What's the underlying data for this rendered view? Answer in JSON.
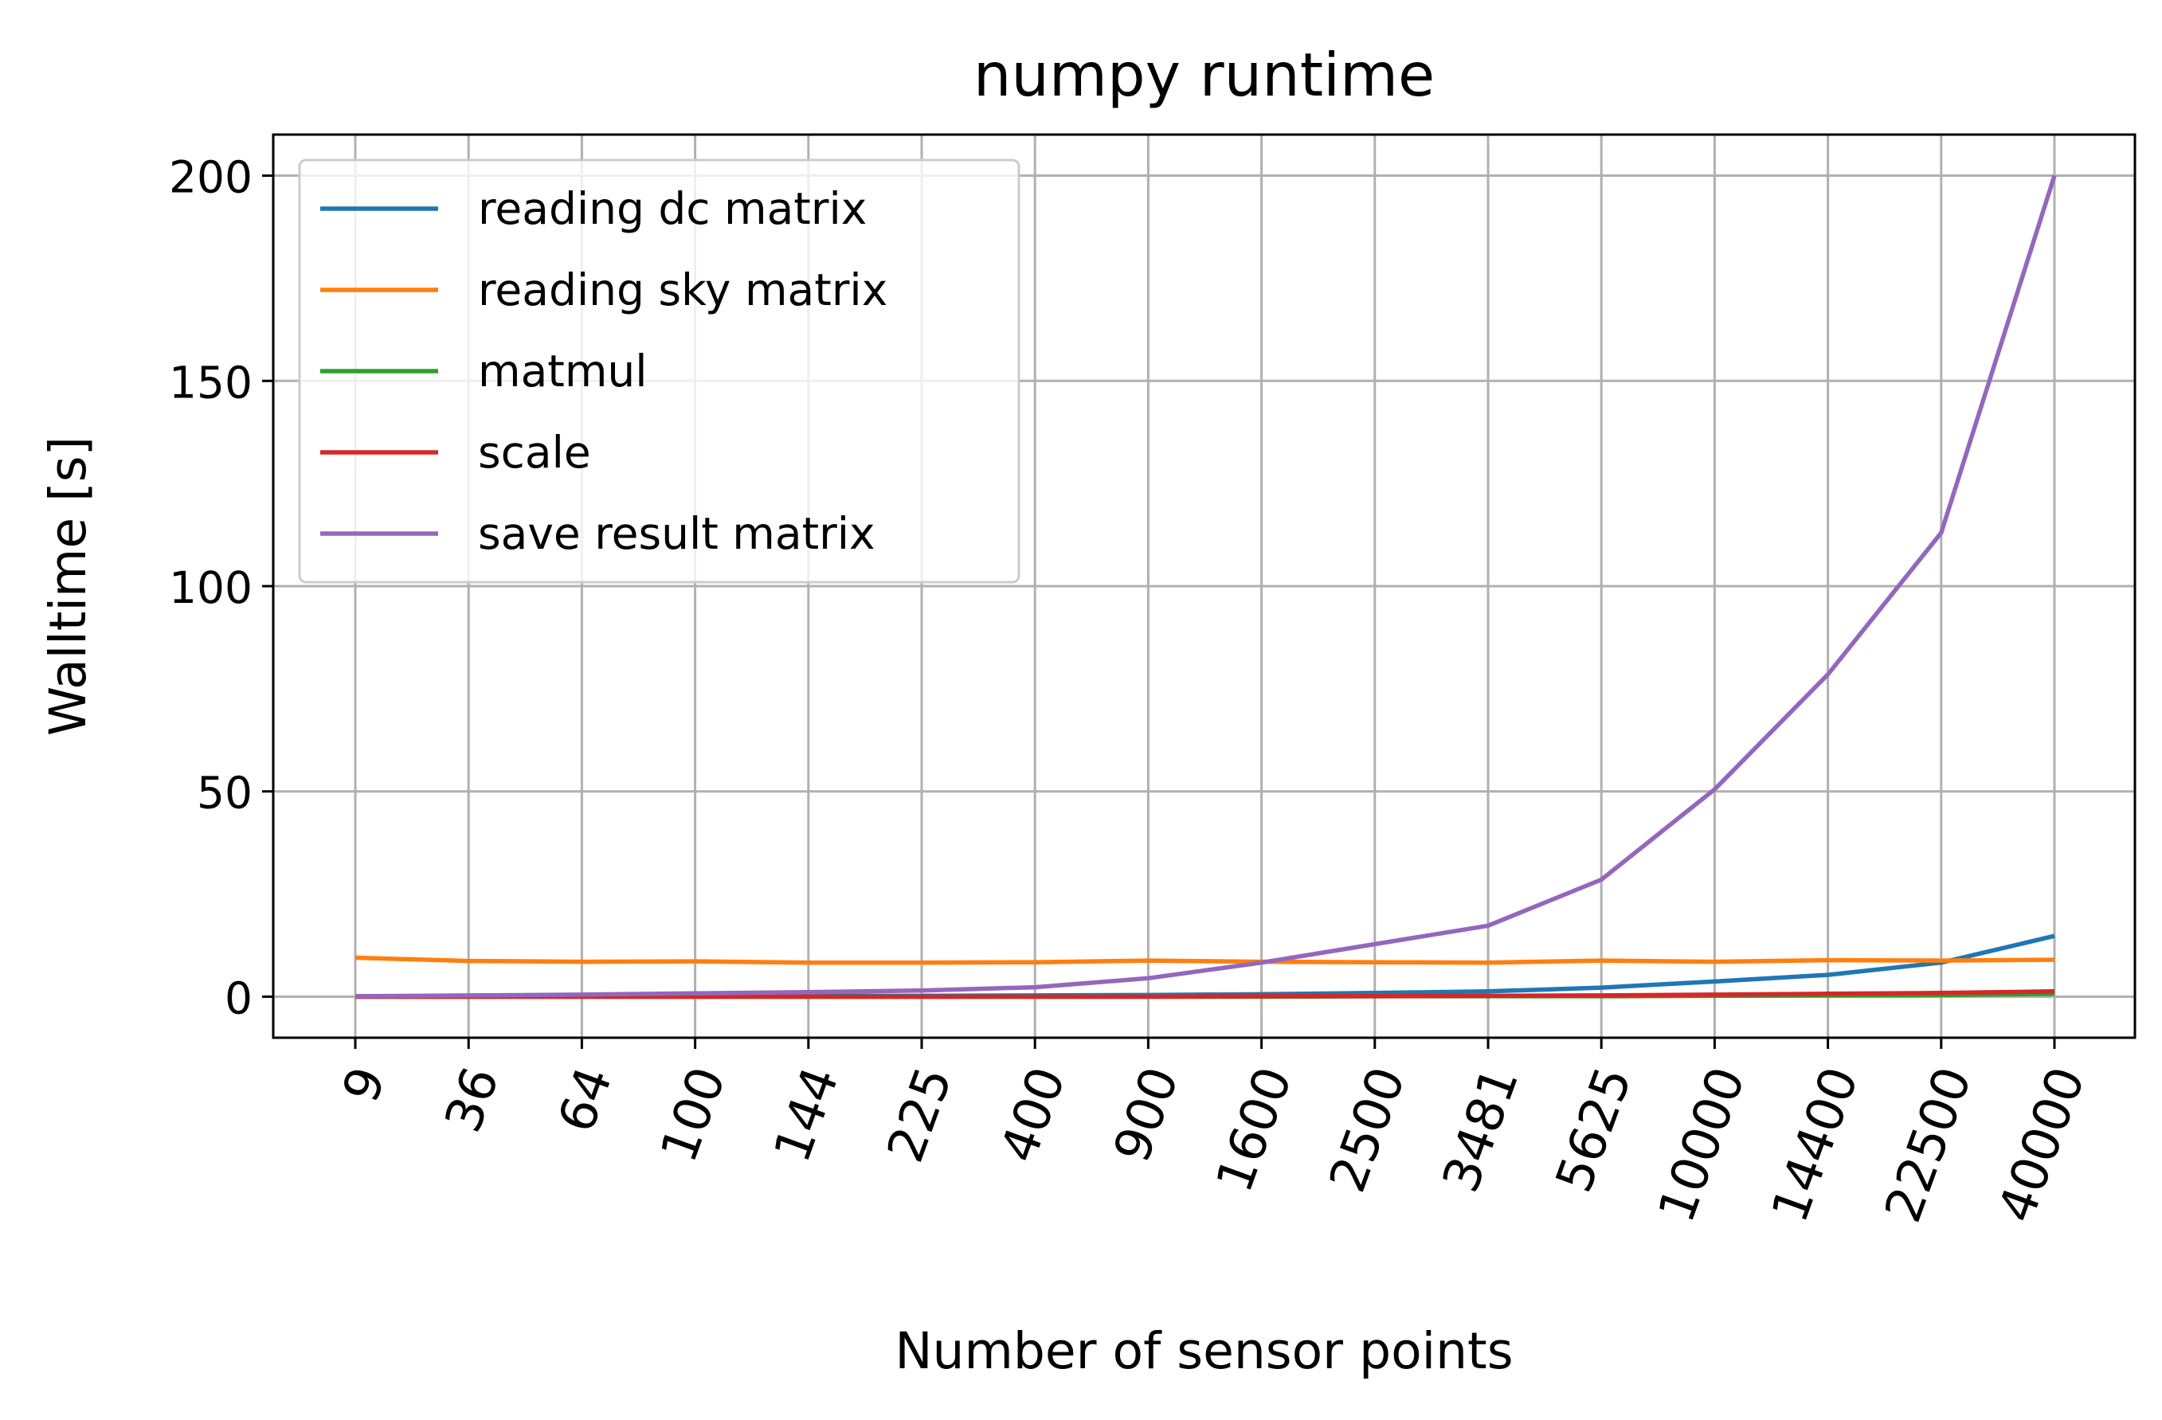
{
  "chart_data": {
    "type": "line",
    "title": "numpy runtime",
    "xlabel": "Number of sensor points",
    "ylabel": "Walltime [s]",
    "categories": [
      "9",
      "36",
      "64",
      "100",
      "144",
      "225",
      "400",
      "900",
      "1600",
      "2500",
      "3481",
      "5625",
      "10000",
      "14400",
      "22500",
      "40000"
    ],
    "yticks": [
      "0",
      "50",
      "100",
      "150",
      "200"
    ],
    "ylim": [
      -10,
      210
    ],
    "grid": true,
    "legend_position": "top-left",
    "series": [
      {
        "name": "reading dc matrix",
        "color": "#1f77b4",
        "values": [
          0.1,
          0.1,
          0.1,
          0.1,
          0.2,
          0.2,
          0.3,
          0.4,
          0.6,
          0.9,
          1.3,
          2.2,
          3.7,
          5.3,
          8.3,
          14.8
        ]
      },
      {
        "name": "reading sky matrix",
        "color": "#ff7f0e",
        "values": [
          9.5,
          8.7,
          8.5,
          8.6,
          8.3,
          8.3,
          8.4,
          8.8,
          8.5,
          8.4,
          8.3,
          8.8,
          8.5,
          8.9,
          8.8,
          9.0
        ]
      },
      {
        "name": "matmul",
        "color": "#2ca02c",
        "values": [
          0.0,
          0.0,
          0.0,
          0.0,
          0.0,
          0.0,
          0.0,
          0.0,
          0.0,
          0.1,
          0.1,
          0.1,
          0.2,
          0.3,
          0.4,
          0.7
        ]
      },
      {
        "name": "scale",
        "color": "#d62728",
        "values": [
          0.0,
          0.0,
          0.0,
          0.0,
          0.0,
          0.0,
          0.0,
          0.0,
          0.1,
          0.1,
          0.2,
          0.3,
          0.5,
          0.7,
          0.9,
          1.3
        ]
      },
      {
        "name": "save result matrix",
        "color": "#9467bd",
        "values": [
          0.1,
          0.3,
          0.5,
          0.8,
          1.1,
          1.5,
          2.3,
          4.5,
          8.3,
          12.8,
          17.3,
          28.5,
          50.5,
          78.5,
          113.0,
          200.0
        ]
      }
    ]
  }
}
